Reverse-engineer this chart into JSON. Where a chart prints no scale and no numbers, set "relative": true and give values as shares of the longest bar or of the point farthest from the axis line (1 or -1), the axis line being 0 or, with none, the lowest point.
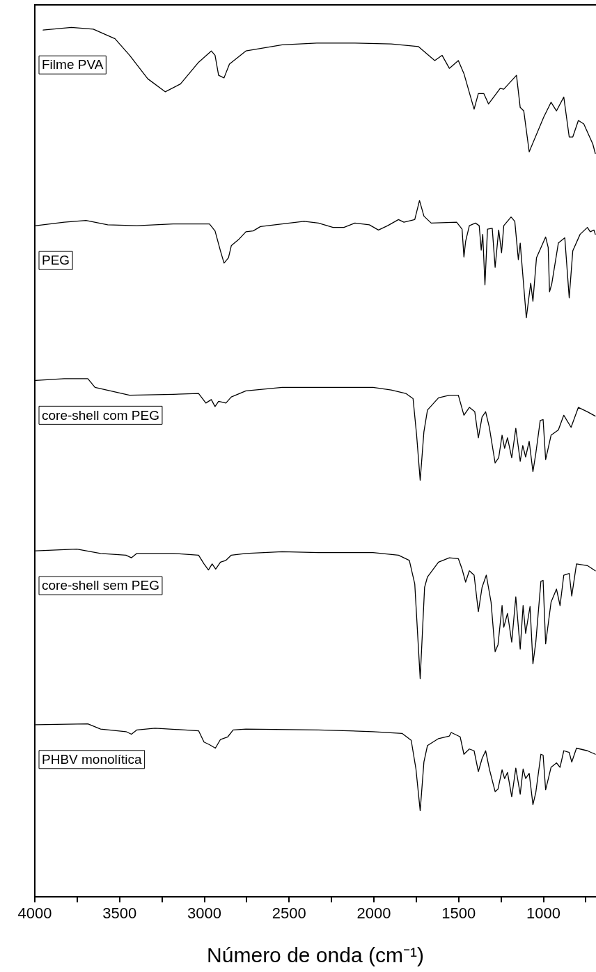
{
  "chart_data": {
    "type": "line",
    "relative": true,
    "xlabel": "Número de onda (cm⁻¹)",
    "xlim": [
      4000,
      690
    ],
    "xticks": [
      4000,
      {
        "value": 3750,
        "label": null
      },
      3500,
      {
        "value": 3250,
        "label": null
      },
      3000,
      {
        "value": 2750,
        "label": null
      },
      2500,
      {
        "value": 2250,
        "label": null
      },
      2000,
      {
        "value": 1750,
        "label": null
      },
      1500,
      {
        "value": 1250,
        "label": null
      },
      1000,
      {
        "value": 750,
        "label": null
      }
    ],
    "legend": false,
    "grid": false,
    "marker": "none",
    "line_style": "solid",
    "series": [
      {
        "name": "Filme PVA",
        "color": "#000000",
        "x": [
          3951,
          3784,
          3655,
          3527,
          3441,
          3334,
          3231,
          3141,
          3034,
          2959,
          2937,
          2916,
          2884,
          2852,
          2755,
          2541,
          2337,
          2112,
          1898,
          1737,
          1641,
          1598,
          1555,
          1502,
          1469,
          1409,
          1384,
          1352,
          1324,
          1255,
          1234,
          1159,
          1137,
          1116,
          1084,
          998,
          955,
          923,
          880,
          848,
          827,
          794,
          762,
          709,
          694
        ],
        "values": [
          0.997,
          1,
          0.998,
          0.987,
          0.968,
          0.941,
          0.926,
          0.935,
          0.96,
          0.973,
          0.968,
          0.945,
          0.942,
          0.958,
          0.973,
          0.98,
          0.982,
          0.982,
          0.981,
          0.978,
          0.962,
          0.968,
          0.953,
          0.962,
          0.947,
          0.906,
          0.924,
          0.924,
          0.912,
          0.93,
          0.929,
          0.945,
          0.908,
          0.904,
          0.857,
          0.897,
          0.914,
          0.904,
          0.92,
          0.874,
          0.874,
          0.893,
          0.889,
          0.866,
          0.855
        ]
      },
      {
        "name": "PEG",
        "color": "#000000",
        "x": [
          3994,
          3827,
          3698,
          3570,
          3398,
          3184,
          2970,
          2937,
          2905,
          2884,
          2858,
          2841,
          2798,
          2755,
          2712,
          2669,
          2541,
          2412,
          2327,
          2241,
          2177,
          2112,
          2027,
          1973,
          1919,
          1855,
          1823,
          1759,
          1731,
          1705,
          1662,
          1512,
          1480,
          1469,
          1459,
          1437,
          1401,
          1379,
          1367,
          1358,
          1345,
          1330,
          1302,
          1285,
          1264,
          1247,
          1234,
          1191,
          1169,
          1148,
          1137,
          1101,
          1075,
          1062,
          1041,
          987,
          972,
          964,
          951,
          912,
          874,
          848,
          827,
          784,
          741,
          724,
          702,
          694
        ],
        "values": [
          0.772,
          0.776,
          0.778,
          0.773,
          0.772,
          0.774,
          0.774,
          0.766,
          0.743,
          0.729,
          0.735,
          0.749,
          0.756,
          0.765,
          0.766,
          0.771,
          0.774,
          0.777,
          0.775,
          0.77,
          0.77,
          0.775,
          0.773,
          0.767,
          0.772,
          0.779,
          0.776,
          0.779,
          0.801,
          0.783,
          0.775,
          0.776,
          0.768,
          0.736,
          0.754,
          0.772,
          0.775,
          0.772,
          0.744,
          0.762,
          0.704,
          0.768,
          0.769,
          0.724,
          0.767,
          0.741,
          0.772,
          0.782,
          0.777,
          0.733,
          0.752,
          0.666,
          0.706,
          0.685,
          0.735,
          0.759,
          0.747,
          0.696,
          0.705,
          0.752,
          0.758,
          0.689,
          0.743,
          0.762,
          0.77,
          0.765,
          0.767,
          0.762
        ]
      },
      {
        "name": "core-shell com PEG",
        "color": "#000000",
        "x": [
          3994,
          3827,
          3687,
          3645,
          3441,
          3184,
          3034,
          2991,
          2959,
          2937,
          2916,
          2873,
          2841,
          2755,
          2541,
          2327,
          2005,
          1898,
          1812,
          1769,
          1748,
          1727,
          1705,
          1684,
          1619,
          1555,
          1502,
          1469,
          1437,
          1405,
          1384,
          1362,
          1341,
          1319,
          1285,
          1264,
          1244,
          1229,
          1212,
          1187,
          1163,
          1137,
          1122,
          1105,
          1084,
          1062,
          1045,
          1019,
          1002,
          987,
          955,
          912,
          880,
          837,
          794,
          741,
          694
        ],
        "values": [
          0.594,
          0.596,
          0.596,
          0.586,
          0.577,
          0.578,
          0.579,
          0.568,
          0.572,
          0.564,
          0.57,
          0.568,
          0.575,
          0.582,
          0.586,
          0.586,
          0.586,
          0.583,
          0.579,
          0.573,
          0.531,
          0.479,
          0.535,
          0.56,
          0.574,
          0.577,
          0.577,
          0.554,
          0.563,
          0.558,
          0.528,
          0.552,
          0.558,
          0.54,
          0.499,
          0.505,
          0.531,
          0.516,
          0.528,
          0.505,
          0.539,
          0.501,
          0.519,
          0.506,
          0.524,
          0.489,
          0.51,
          0.548,
          0.549,
          0.503,
          0.531,
          0.537,
          0.554,
          0.54,
          0.563,
          0.558,
          0.553
        ]
      },
      {
        "name": "core-shell sem PEG",
        "color": "#000000",
        "x": [
          3994,
          3752,
          3612,
          3462,
          3430,
          3398,
          3184,
          3034,
          3002,
          2976,
          2954,
          2933,
          2905,
          2873,
          2841,
          2755,
          2541,
          2327,
          2005,
          1855,
          1791,
          1759,
          1727,
          1701,
          1684,
          1619,
          1555,
          1502,
          1480,
          1459,
          1437,
          1409,
          1384,
          1362,
          1337,
          1309,
          1285,
          1268,
          1244,
          1234,
          1212,
          1187,
          1163,
          1137,
          1120,
          1105,
          1079,
          1062,
          1045,
          1015,
          1002,
          987,
          955,
          923,
          902,
          880,
          848,
          833,
          805,
          741,
          694
        ],
        "values": [
          0.398,
          0.4,
          0.395,
          0.393,
          0.39,
          0.395,
          0.395,
          0.393,
          0.383,
          0.376,
          0.383,
          0.377,
          0.385,
          0.387,
          0.393,
          0.395,
          0.397,
          0.396,
          0.396,
          0.393,
          0.387,
          0.36,
          0.251,
          0.356,
          0.368,
          0.385,
          0.39,
          0.389,
          0.377,
          0.362,
          0.375,
          0.37,
          0.328,
          0.356,
          0.37,
          0.339,
          0.282,
          0.29,
          0.335,
          0.31,
          0.326,
          0.293,
          0.345,
          0.285,
          0.335,
          0.303,
          0.334,
          0.268,
          0.293,
          0.363,
          0.364,
          0.291,
          0.339,
          0.354,
          0.335,
          0.37,
          0.372,
          0.346,
          0.383,
          0.381,
          0.375
        ]
      },
      {
        "name": "PHBV monolítica",
        "color": "#000000",
        "x": [
          3994,
          3687,
          3612,
          3462,
          3430,
          3398,
          3291,
          3034,
          3002,
          2970,
          2935,
          2905,
          2862,
          2830,
          2755,
          2327,
          2005,
          1834,
          1780,
          1752,
          1727,
          1705,
          1684,
          1619,
          1555,
          1544,
          1491,
          1469,
          1437,
          1409,
          1384,
          1362,
          1341,
          1319,
          1285,
          1268,
          1244,
          1229,
          1212,
          1187,
          1163,
          1137,
          1120,
          1105,
          1084,
          1062,
          1045,
          1015,
          1002,
          987,
          955,
          923,
          902,
          880,
          848,
          833,
          805,
          741,
          694
        ],
        "values": [
          0.198,
          0.199,
          0.193,
          0.19,
          0.187,
          0.192,
          0.194,
          0.191,
          0.178,
          0.175,
          0.171,
          0.181,
          0.184,
          0.192,
          0.193,
          0.192,
          0.19,
          0.188,
          0.18,
          0.147,
          0.099,
          0.155,
          0.174,
          0.182,
          0.185,
          0.189,
          0.184,
          0.164,
          0.17,
          0.168,
          0.144,
          0.159,
          0.168,
          0.147,
          0.121,
          0.124,
          0.146,
          0.136,
          0.143,
          0.115,
          0.148,
          0.118,
          0.147,
          0.136,
          0.142,
          0.106,
          0.12,
          0.164,
          0.163,
          0.123,
          0.149,
          0.154,
          0.149,
          0.168,
          0.166,
          0.155,
          0.171,
          0.168,
          0.164
        ]
      }
    ]
  }
}
